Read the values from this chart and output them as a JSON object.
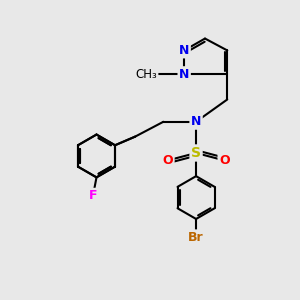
{
  "background_color": "#e8e8e8",
  "bond_width": 1.5,
  "atom_colors": {
    "N": "#0000ee",
    "S": "#bbbb00",
    "O": "#ff0000",
    "F": "#ff00ff",
    "Br": "#bb6600",
    "C": "#000000"
  },
  "font_size": 9,
  "xlim": [
    0,
    10
  ],
  "ylim": [
    0,
    10
  ]
}
